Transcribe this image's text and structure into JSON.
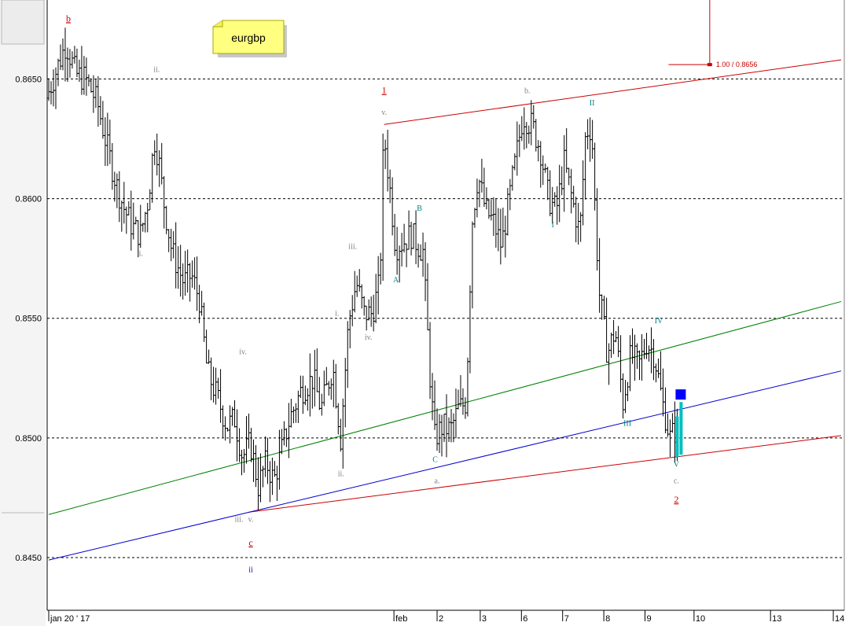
{
  "chart_data": {
    "type": "ohlc",
    "symbol": "eurgbp",
    "ylim": [
      0.8428,
      0.8683
    ],
    "x_range": [
      0,
      20.2
    ],
    "y_ticks": [
      {
        "value": 0.865,
        "label": "0.8650"
      },
      {
        "value": 0.86,
        "label": "0.8600"
      },
      {
        "value": 0.855,
        "label": "0.8550"
      },
      {
        "value": 0.85,
        "label": "0.8500"
      },
      {
        "value": 0.845,
        "label": "0.8450"
      }
    ],
    "x_ticks": [
      {
        "x": 0.0,
        "label": "jan 20 ' 17"
      },
      {
        "x": 8.8,
        "label": "feb"
      },
      {
        "x": 9.9,
        "label": "2"
      },
      {
        "x": 11.0,
        "label": "3"
      },
      {
        "x": 12.05,
        "label": "6"
      },
      {
        "x": 13.1,
        "label": "7"
      },
      {
        "x": 14.15,
        "label": "8"
      },
      {
        "x": 15.2,
        "label": "9"
      },
      {
        "x": 16.45,
        "label": "10"
      },
      {
        "x": 18.4,
        "label": "13"
      },
      {
        "x": 20.0,
        "label": "14"
      }
    ],
    "gridlines_y": [
      0.865,
      0.86,
      0.855,
      0.85,
      0.845
    ],
    "waypoints": [
      [
        0.0,
        0.8642
      ],
      [
        0.5,
        0.8665
      ],
      [
        0.75,
        0.8652
      ],
      [
        1.0,
        0.865
      ],
      [
        1.3,
        0.864
      ],
      [
        1.5,
        0.8625
      ],
      [
        1.8,
        0.8605
      ],
      [
        2.0,
        0.8595
      ],
      [
        2.2,
        0.8588
      ],
      [
        2.4,
        0.8585
      ],
      [
        2.6,
        0.86
      ],
      [
        2.75,
        0.8625
      ],
      [
        2.85,
        0.8618
      ],
      [
        3.0,
        0.8598
      ],
      [
        3.2,
        0.8578
      ],
      [
        3.5,
        0.8565
      ],
      [
        3.7,
        0.8568
      ],
      [
        3.9,
        0.8558
      ],
      [
        4.1,
        0.8528
      ],
      [
        4.4,
        0.8515
      ],
      [
        4.6,
        0.8505
      ],
      [
        4.8,
        0.8508
      ],
      [
        5.0,
        0.8492
      ],
      [
        5.2,
        0.8498
      ],
      [
        5.4,
        0.848
      ],
      [
        5.6,
        0.849
      ],
      [
        5.8,
        0.8482
      ],
      [
        6.0,
        0.8495
      ],
      [
        6.2,
        0.8508
      ],
      [
        6.5,
        0.852
      ],
      [
        6.8,
        0.8525
      ],
      [
        7.0,
        0.8512
      ],
      [
        7.3,
        0.853
      ],
      [
        7.5,
        0.85
      ],
      [
        7.7,
        0.8548
      ],
      [
        7.9,
        0.8565
      ],
      [
        8.1,
        0.8552
      ],
      [
        8.3,
        0.8552
      ],
      [
        8.5,
        0.8565
      ],
      [
        8.6,
        0.8628
      ],
      [
        8.75,
        0.8605
      ],
      [
        8.9,
        0.858
      ],
      [
        9.1,
        0.8582
      ],
      [
        9.3,
        0.8585
      ],
      [
        9.5,
        0.858
      ],
      [
        9.6,
        0.8578
      ],
      [
        9.8,
        0.852
      ],
      [
        9.9,
        0.85
      ],
      [
        10.1,
        0.8505
      ],
      [
        10.3,
        0.8503
      ],
      [
        10.5,
        0.8512
      ],
      [
        10.7,
        0.8515
      ],
      [
        10.85,
        0.859
      ],
      [
        11.0,
        0.861
      ],
      [
        11.2,
        0.8595
      ],
      [
        11.4,
        0.859
      ],
      [
        11.6,
        0.858
      ],
      [
        11.8,
        0.86
      ],
      [
        12.0,
        0.862
      ],
      [
        12.15,
        0.8635
      ],
      [
        12.4,
        0.863
      ],
      [
        12.6,
        0.862
      ],
      [
        12.8,
        0.86
      ],
      [
        13.0,
        0.8595
      ],
      [
        13.2,
        0.8615
      ],
      [
        13.4,
        0.86
      ],
      [
        13.6,
        0.8585
      ],
      [
        13.75,
        0.8628
      ],
      [
        13.9,
        0.863
      ],
      [
        14.0,
        0.859
      ],
      [
        14.1,
        0.856
      ],
      [
        14.3,
        0.8535
      ],
      [
        14.5,
        0.8545
      ],
      [
        14.7,
        0.8515
      ],
      [
        14.9,
        0.8535
      ],
      [
        15.1,
        0.853
      ],
      [
        15.3,
        0.854
      ],
      [
        15.5,
        0.8535
      ],
      [
        15.7,
        0.8515
      ],
      [
        15.9,
        0.85
      ],
      [
        16.1,
        0.8505
      ]
    ],
    "highlight_bars": [
      {
        "x": 16.02,
        "high": 0.8509,
        "low": 0.8492
      },
      {
        "x": 16.12,
        "high": 0.8515,
        "low": 0.8493
      }
    ],
    "marker": {
      "x": 16.1,
      "y": 0.8518,
      "color": "#0000ff"
    },
    "target": {
      "label": "1.00 / 0.8656",
      "x": 16.85,
      "y": 0.8656,
      "x_from": 15.8,
      "color": "#cc0000"
    },
    "trendlines": [
      {
        "name": "upper-channel",
        "color": "#cc0000",
        "from": [
          8.55,
          0.8631
        ],
        "to": [
          20.2,
          0.8658
        ]
      },
      {
        "name": "lower-channel",
        "color": "#cc0000",
        "from": [
          5.1,
          0.8469
        ],
        "to": [
          20.2,
          0.8501
        ]
      },
      {
        "name": "green-line",
        "color": "#008000",
        "from": [
          0.0,
          0.8468
        ],
        "to": [
          20.2,
          0.8557
        ]
      },
      {
        "name": "blue-line",
        "color": "#0000cc",
        "from": [
          0.0,
          0.8449
        ],
        "to": [
          20.2,
          0.8528
        ]
      }
    ],
    "annotations": [
      {
        "text": "b",
        "x": 0.5,
        "y": 0.8674,
        "color": "#cc0000",
        "big": true
      },
      {
        "text": "ii.",
        "x": 2.75,
        "y": 0.8653,
        "color": "#808080"
      },
      {
        "text": "i.",
        "x": 2.35,
        "y": 0.8576,
        "color": "#808080"
      },
      {
        "text": "iv.",
        "x": 4.95,
        "y": 0.8535,
        "color": "#808080"
      },
      {
        "text": "iii.",
        "x": 4.85,
        "y": 0.8465,
        "color": "#808080"
      },
      {
        "text": "v.",
        "x": 5.15,
        "y": 0.8465,
        "color": "#808080"
      },
      {
        "text": "c",
        "x": 5.15,
        "y": 0.8455,
        "color": "#cc0000",
        "big": true
      },
      {
        "text": "ii",
        "x": 5.15,
        "y": 0.8444,
        "color": "#0000cc"
      },
      {
        "text": "i.",
        "x": 7.35,
        "y": 0.8551,
        "color": "#808080"
      },
      {
        "text": "ii.",
        "x": 7.45,
        "y": 0.8484,
        "color": "#808080"
      },
      {
        "text": "iii.",
        "x": 7.75,
        "y": 0.8579,
        "color": "#808080"
      },
      {
        "text": "iv.",
        "x": 8.15,
        "y": 0.8541,
        "color": "#808080"
      },
      {
        "text": "v.",
        "x": 8.55,
        "y": 0.8635,
        "color": "#808080"
      },
      {
        "text": "1",
        "x": 8.55,
        "y": 0.8644,
        "color": "#cc0000",
        "big": true
      },
      {
        "text": "A",
        "x": 8.85,
        "y": 0.8565,
        "color": "#008080"
      },
      {
        "text": "B",
        "x": 9.45,
        "y": 0.8595,
        "color": "#008080"
      },
      {
        "text": "C",
        "x": 9.85,
        "y": 0.849,
        "color": "#008080"
      },
      {
        "text": "a.",
        "x": 9.9,
        "y": 0.8481,
        "color": "#808080"
      },
      {
        "text": "b.",
        "x": 12.2,
        "y": 0.8644,
        "color": "#808080"
      },
      {
        "text": "II",
        "x": 13.85,
        "y": 0.8639,
        "color": "#008080"
      },
      {
        "text": "I",
        "x": 12.85,
        "y": 0.8588,
        "color": "#008080"
      },
      {
        "text": "III",
        "x": 14.75,
        "y": 0.8505,
        "color": "#008080"
      },
      {
        "text": "IV",
        "x": 15.55,
        "y": 0.8548,
        "color": "#008080"
      },
      {
        "text": "V",
        "x": 16.0,
        "y": 0.8488,
        "color": "#008080"
      },
      {
        "text": "c.",
        "x": 16.0,
        "y": 0.8481,
        "color": "#808080"
      },
      {
        "text": "2",
        "x": 16.0,
        "y": 0.8473,
        "color": "#cc0000",
        "big": true
      }
    ],
    "colors": {
      "bars": "#000000",
      "highlight": "#00bfbf",
      "grid": "#000000",
      "note_fill": "#ffff80",
      "note_border": "#b0b000"
    }
  }
}
